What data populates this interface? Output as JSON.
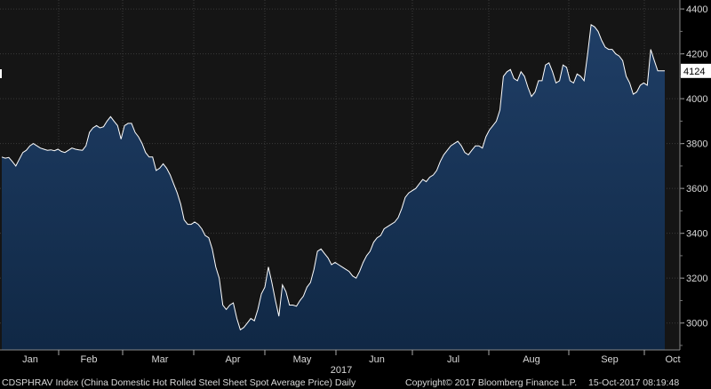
{
  "chart_data": {
    "type": "area",
    "x_tick_labels": [
      "Jan",
      "Feb",
      "Mar",
      "Apr",
      "May",
      "Jun",
      "Jul",
      "Aug",
      "Sep",
      "Oct"
    ],
    "year_label": "2017",
    "y_ticks": [
      3000,
      3200,
      3400,
      3600,
      3800,
      4000,
      4200,
      4400
    ],
    "ylim": [
      2880,
      4440
    ],
    "last_value": 4124,
    "grid": true,
    "series": [
      {
        "values": [
          3740,
          3735,
          3738,
          3720,
          3700,
          3730,
          3760,
          3770,
          3790,
          3800,
          3790,
          3780,
          3775,
          3770,
          3772,
          3768,
          3775,
          3765,
          3760,
          3770,
          3780,
          3775,
          3772,
          3770,
          3790,
          3850,
          3870,
          3880,
          3870,
          3875,
          3900,
          3920,
          3900,
          3880,
          3820,
          3880,
          3890,
          3890,
          3850,
          3830,
          3800,
          3760,
          3740,
          3740,
          3680,
          3690,
          3710,
          3690,
          3660,
          3620,
          3580,
          3530,
          3460,
          3440,
          3440,
          3450,
          3440,
          3420,
          3390,
          3380,
          3330,
          3250,
          3200,
          3080,
          3060,
          3080,
          3090,
          3020,
          2970,
          2980,
          3000,
          3020,
          3010,
          3060,
          3130,
          3160,
          3250,
          3180,
          3100,
          3030,
          3170,
          3140,
          3080,
          3080,
          3075,
          3100,
          3120,
          3160,
          3180,
          3240,
          3320,
          3330,
          3310,
          3290,
          3260,
          3270,
          3260,
          3250,
          3240,
          3230,
          3210,
          3200,
          3230,
          3270,
          3300,
          3320,
          3360,
          3380,
          3390,
          3420,
          3430,
          3440,
          3450,
          3470,
          3510,
          3560,
          3580,
          3590,
          3600,
          3620,
          3640,
          3630,
          3650,
          3660,
          3680,
          3720,
          3750,
          3770,
          3790,
          3800,
          3810,
          3790,
          3760,
          3750,
          3770,
          3790,
          3790,
          3780,
          3830,
          3860,
          3880,
          3900,
          3950,
          4100,
          4120,
          4130,
          4090,
          4080,
          4120,
          4100,
          4050,
          4010,
          4030,
          4080,
          4080,
          4150,
          4160,
          4120,
          4070,
          4080,
          4150,
          4140,
          4080,
          4070,
          4110,
          4100,
          4080,
          4200,
          4330,
          4320,
          4300,
          4260,
          4230,
          4220,
          4220,
          4200,
          4190,
          4170,
          4100,
          4070,
          4020,
          4030,
          4060,
          4070,
          4060,
          4220,
          4170,
          4124,
          4124,
          4124
        ]
      }
    ]
  },
  "footer": {
    "ticker": "CDSPHRAV Index (China Domestic Hot Rolled Steel Sheet Spot Average Price)  Daily",
    "copyright": "Copyright© 2017 Bloomberg Finance L.P.",
    "timestamp": "15-Oct-2017 08:19:48"
  },
  "colors": {
    "background": "#000000",
    "plot_background": "#151515",
    "fill_top": "#1f3e66",
    "fill_bottom": "#102845",
    "line": "#ffffff",
    "grid": "#3a3a3a",
    "axis_text": "#d8d8d8"
  }
}
